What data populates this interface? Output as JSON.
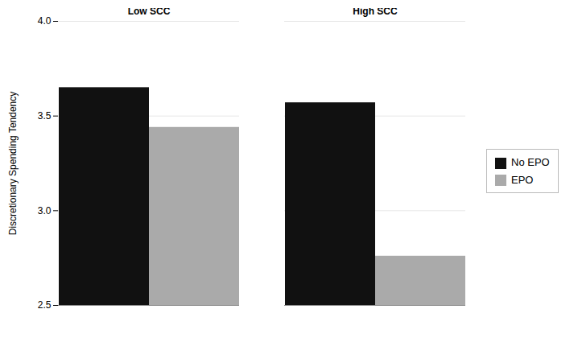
{
  "chart_data": {
    "type": "bar",
    "categories": [
      "Low SCC",
      "High SCC"
    ],
    "series": [
      {
        "name": "No EPO",
        "color": "#111111",
        "values": [
          3.65,
          3.57
        ]
      },
      {
        "name": "EPO",
        "color": "#aaaaaa",
        "values": [
          3.44,
          2.76
        ]
      }
    ],
    "ylabel": "Discretionary Spending Tendency",
    "ylim": [
      2.5,
      4.0
    ],
    "yticks": [
      2.5,
      {
        "value": 3.0,
        "label": "3.0"
      },
      3.5,
      {
        "value": 4.0,
        "label": "4.0"
      }
    ],
    "grid": true,
    "legend": "right"
  }
}
